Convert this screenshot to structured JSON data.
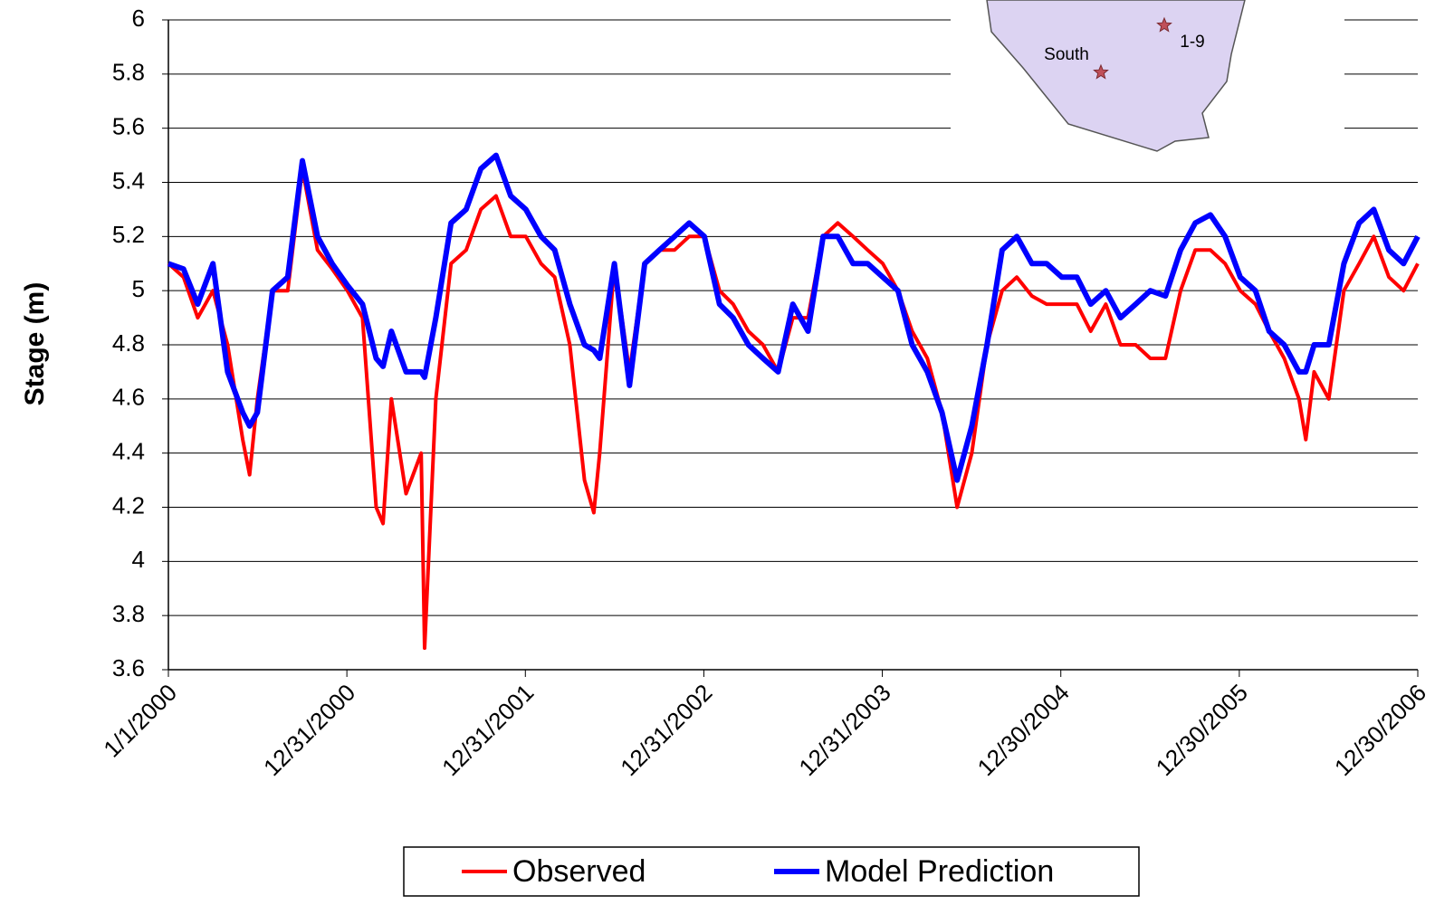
{
  "chart_data": {
    "type": "line",
    "y_label": "Stage (m)",
    "x": [
      "1/1/2000",
      "2/1/2000",
      "3/1/2000",
      "4/1/2000",
      "5/1/2000",
      "6/1/2000",
      "6/15/2000",
      "7/1/2000",
      "8/1/2000",
      "9/1/2000",
      "10/1/2000",
      "11/1/2000",
      "12/1/2000",
      "1/1/2001",
      "2/1/2001",
      "3/1/2001",
      "3/15/2001",
      "4/1/2001",
      "5/1/2001",
      "6/1/2001",
      "6/8/2001",
      "7/1/2001",
      "8/1/2001",
      "9/1/2001",
      "10/1/2001",
      "11/1/2001",
      "12/1/2001",
      "1/1/2002",
      "2/1/2002",
      "3/1/2002",
      "4/1/2002",
      "5/1/2002",
      "5/20/2002",
      "6/1/2002",
      "7/1/2002",
      "8/1/2002",
      "9/1/2002",
      "10/1/2002",
      "11/1/2002",
      "12/1/2002",
      "1/1/2003",
      "2/1/2003",
      "3/1/2003",
      "4/1/2003",
      "5/1/2003",
      "6/1/2003",
      "7/1/2003",
      "8/1/2003",
      "9/1/2003",
      "10/1/2003",
      "11/1/2003",
      "12/1/2003",
      "1/1/2004",
      "2/1/2004",
      "3/1/2004",
      "4/1/2004",
      "5/1/2004",
      "6/1/2004",
      "7/1/2004",
      "8/1/2004",
      "9/1/2004",
      "10/1/2004",
      "11/1/2004",
      "12/1/2004",
      "1/1/2005",
      "2/1/2005",
      "3/1/2005",
      "4/1/2005",
      "5/1/2005",
      "6/1/2005",
      "7/1/2005",
      "8/1/2005",
      "9/1/2005",
      "10/1/2005",
      "11/1/2005",
      "12/1/2005",
      "1/1/2006",
      "2/1/2006",
      "3/1/2006",
      "4/1/2006",
      "5/1/2006",
      "5/15/2006",
      "6/1/2006",
      "7/1/2006",
      "8/1/2006",
      "9/1/2006",
      "10/1/2006",
      "11/1/2006",
      "12/1/2006",
      "12/30/2006"
    ],
    "series": [
      {
        "name": "Observed",
        "color": "#ff0000",
        "values": [
          5.1,
          5.05,
          4.9,
          5.0,
          4.8,
          4.45,
          4.32,
          4.6,
          5.0,
          5.0,
          5.45,
          5.15,
          5.08,
          5.0,
          4.9,
          4.2,
          4.14,
          4.6,
          4.25,
          4.4,
          3.68,
          4.6,
          5.1,
          5.15,
          5.3,
          5.35,
          5.2,
          5.2,
          5.1,
          5.05,
          4.8,
          4.3,
          4.18,
          4.4,
          5.1,
          4.7,
          5.1,
          5.15,
          5.15,
          5.2,
          5.2,
          5.0,
          4.95,
          4.85,
          4.8,
          4.7,
          4.9,
          4.9,
          5.2,
          5.25,
          5.2,
          5.15,
          5.1,
          5.0,
          4.85,
          4.75,
          4.55,
          4.2,
          4.4,
          4.8,
          5.0,
          5.05,
          4.98,
          4.95,
          4.95,
          4.95,
          4.85,
          4.95,
          4.8,
          4.8,
          4.75,
          4.75,
          5.0,
          5.15,
          5.15,
          5.1,
          5.0,
          4.95,
          4.85,
          4.75,
          4.6,
          4.45,
          4.7,
          4.6,
          5.0,
          5.1,
          5.2,
          5.05,
          5.0,
          5.1
        ]
      },
      {
        "name": "Model Prediction",
        "color": "#0000ff",
        "values": [
          5.1,
          5.08,
          4.95,
          5.1,
          4.7,
          4.55,
          4.5,
          4.55,
          5.0,
          5.05,
          5.48,
          5.2,
          5.1,
          5.02,
          4.95,
          4.75,
          4.72,
          4.85,
          4.7,
          4.7,
          4.68,
          4.9,
          5.25,
          5.3,
          5.45,
          5.5,
          5.35,
          5.3,
          5.2,
          5.15,
          4.95,
          4.8,
          4.78,
          4.75,
          5.1,
          4.65,
          5.1,
          5.15,
          5.2,
          5.25,
          5.2,
          4.95,
          4.9,
          4.8,
          4.75,
          4.7,
          4.95,
          4.85,
          5.2,
          5.2,
          5.1,
          5.1,
          5.05,
          5.0,
          4.8,
          4.7,
          4.55,
          4.3,
          4.5,
          4.8,
          5.15,
          5.2,
          5.1,
          5.1,
          5.05,
          5.05,
          4.95,
          5.0,
          4.9,
          4.95,
          5.0,
          4.98,
          5.15,
          5.25,
          5.28,
          5.2,
          5.05,
          5.0,
          4.85,
          4.8,
          4.7,
          4.7,
          4.8,
          4.8,
          5.1,
          5.25,
          5.3,
          5.15,
          5.1,
          5.2
        ]
      }
    ],
    "xlim": [
      "1/1/2000",
      "12/30/2006"
    ],
    "xticks": [
      "1/1/2000",
      "12/31/2000",
      "12/31/2001",
      "12/31/2002",
      "12/31/2003",
      "12/30/2004",
      "12/30/2005",
      "12/30/2006"
    ],
    "ylim": [
      3.6,
      6
    ],
    "yticks": [
      3.6,
      3.8,
      4,
      4.2,
      4.4,
      4.6,
      4.8,
      5,
      5.2,
      5.4,
      5.6,
      5.8,
      6
    ],
    "grid": true
  },
  "inset_map": {
    "labels": [
      "South",
      "1-9"
    ]
  }
}
